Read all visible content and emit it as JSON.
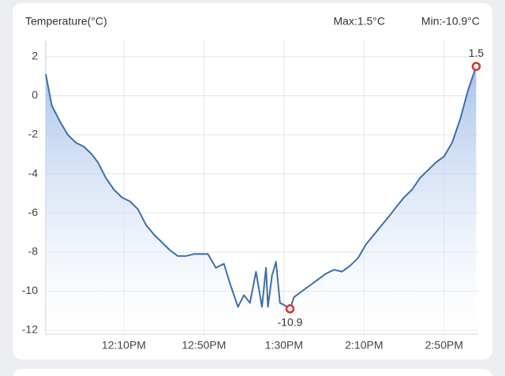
{
  "chart_data": {
    "type": "line",
    "title": "Temperature(°C)",
    "max_text": "Max:1.5°C",
    "min_text": "Min:-10.9°C",
    "x": [
      691,
      694,
      698,
      702,
      706,
      710,
      714,
      717,
      721,
      725,
      729,
      733,
      737,
      741,
      745,
      749,
      753,
      757,
      761,
      765,
      768,
      772,
      776,
      780,
      783,
      787,
      790,
      793,
      796,
      799,
      801,
      802,
      804,
      806,
      808,
      810,
      813,
      815,
      819,
      823,
      827,
      831,
      835,
      839,
      843,
      847,
      851,
      855,
      859,
      863,
      866,
      870,
      874,
      878,
      882,
      886,
      890,
      894,
      898,
      902,
      906
    ],
    "values": [
      1.1,
      -0.5,
      -1.3,
      -2.0,
      -2.4,
      -2.6,
      -3.0,
      -3.4,
      -4.2,
      -4.8,
      -5.2,
      -5.4,
      -5.8,
      -6.6,
      -7.1,
      -7.5,
      -7.9,
      -8.2,
      -8.2,
      -8.1,
      -8.1,
      -8.1,
      -8.8,
      -8.6,
      -9.6,
      -10.8,
      -10.2,
      -10.6,
      -9.0,
      -10.8,
      -8.8,
      -10.8,
      -9.2,
      -8.5,
      -10.6,
      -10.7,
      -10.9,
      -10.3,
      -10.0,
      -9.7,
      -9.4,
      -9.1,
      -8.9,
      -9.0,
      -8.7,
      -8.3,
      -7.6,
      -7.1,
      -6.6,
      -6.1,
      -5.7,
      -5.2,
      -4.8,
      -4.2,
      -3.8,
      -3.4,
      -3.1,
      -2.4,
      -1.2,
      0.3,
      1.5
    ],
    "color": "#3f6fa6",
    "fill": "#b9cdf0",
    "marker_color": "#d9342b",
    "xlim": [
      691,
      907
    ],
    "xticks": [
      {
        "value": 730,
        "label": "12:10PM"
      },
      {
        "value": 770,
        "label": "12:50PM"
      },
      {
        "value": 810,
        "label": "1:30PM"
      },
      {
        "value": 850,
        "label": "2:10PM"
      },
      {
        "value": 890,
        "label": "2:50PM"
      }
    ],
    "ylim": [
      -12.2,
      2.8
    ],
    "yticks": [
      -12,
      -10,
      -8,
      -6,
      -4,
      -2,
      0,
      2
    ],
    "grid": true
  }
}
